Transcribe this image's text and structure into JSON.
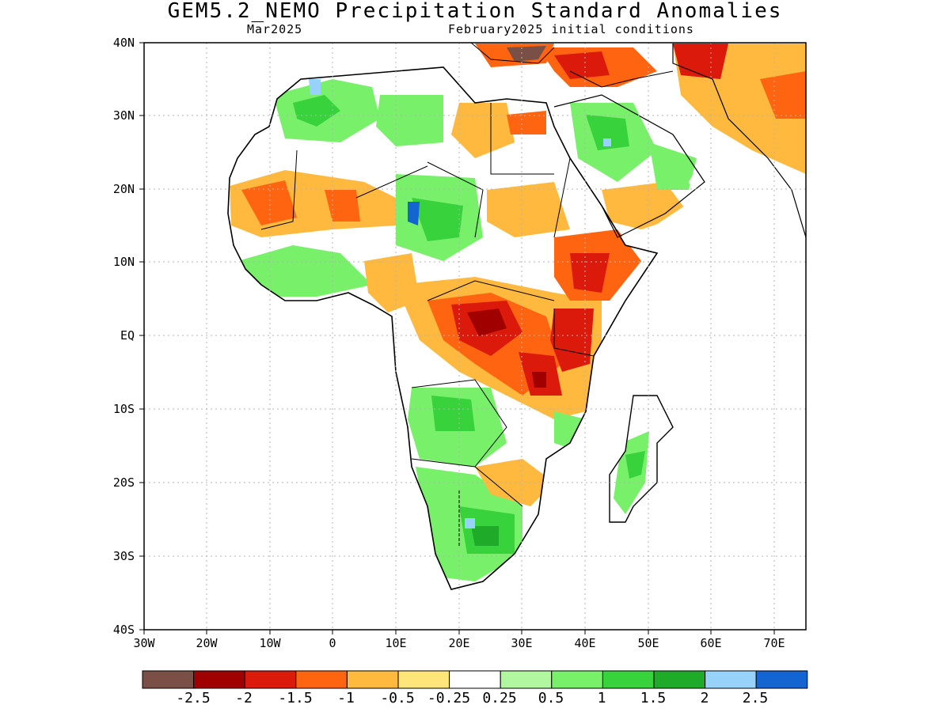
{
  "title": "GEM5.2_NEMO Precipitation Standard Anomalies",
  "subtitle_left": "Mar2025",
  "subtitle_right": "February2025 initial conditions",
  "lat_labels": [
    "40N",
    "30N",
    "20N",
    "10N",
    "EQ",
    "10S",
    "20S",
    "30S",
    "40S"
  ],
  "lon_labels": [
    "30W",
    "20W",
    "10W",
    "0",
    "10E",
    "20E",
    "30E",
    "40E",
    "50E",
    "60E",
    "70E"
  ],
  "colorbar": {
    "colors": [
      "#7a4f46",
      "#a00000",
      "#dc1a0c",
      "#ff6410",
      "#ffb93e",
      "#ffe57a",
      "#ffffff",
      "#b0f7a0",
      "#78f06a",
      "#37d23c",
      "#1faa2a",
      "#96d2fa",
      "#1464d2"
    ],
    "labels": [
      "-2.5",
      "-2",
      "-1.5",
      "-1",
      "-0.5",
      "-0.25",
      "0.25",
      "0.5",
      "1",
      "1.5",
      "2",
      "2.5"
    ]
  }
}
